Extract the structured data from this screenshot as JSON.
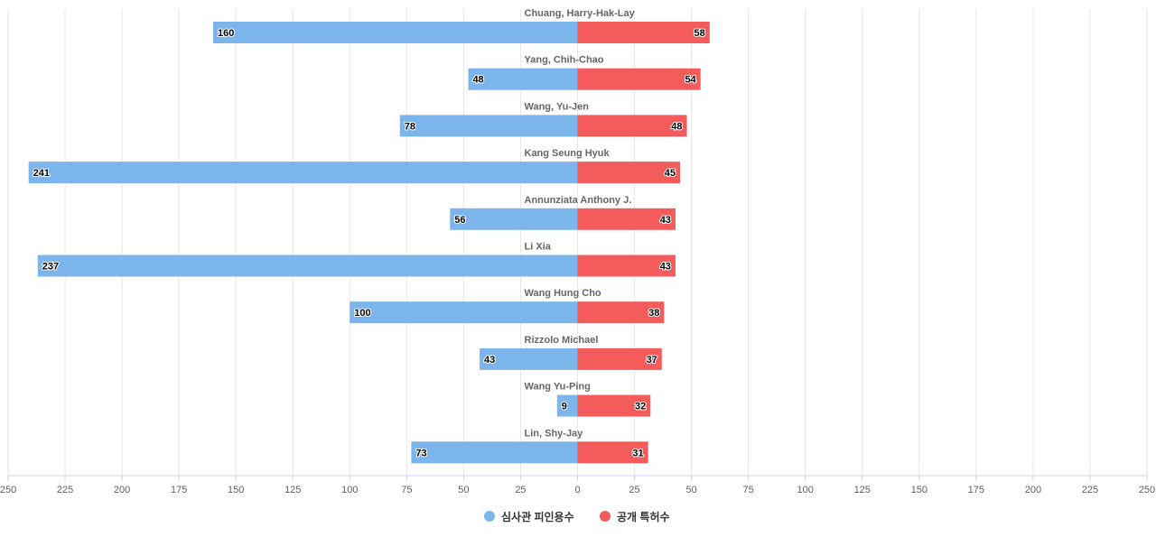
{
  "chart_data": {
    "type": "bar",
    "orientation": "horizontal-diverging",
    "categories": [
      "Chuang, Harry-Hak-Lay",
      "Yang, Chih-Chao",
      "Wang, Yu-Jen",
      "Kang Seung Hyuk",
      "Annunziata Anthony J.",
      "Li Xia",
      "Wang Hung Cho",
      "Rizzolo Michael",
      "Wang Yu-Ping",
      "Lin, Shy-Jay"
    ],
    "series": [
      {
        "name": "심사관 피인용수",
        "side": "left",
        "color": "#7cb5ec",
        "values": [
          160,
          48,
          78,
          241,
          56,
          237,
          100,
          43,
          9,
          73
        ]
      },
      {
        "name": "공개 특허수",
        "side": "right",
        "color": "#f45b5b",
        "values": [
          58,
          54,
          48,
          45,
          43,
          43,
          38,
          37,
          32,
          31
        ]
      }
    ],
    "xlim": [
      -250,
      250
    ],
    "x_ticks": [
      "250",
      "225",
      "200",
      "175",
      "150",
      "125",
      "100",
      "75",
      "50",
      "25",
      "0",
      "25",
      "50",
      "75",
      "100",
      "125",
      "150",
      "175",
      "200",
      "225",
      "250"
    ],
    "grid": true,
    "legend_position": "bottom-center"
  }
}
